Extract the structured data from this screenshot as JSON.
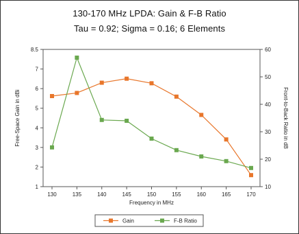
{
  "chart_data": {
    "type": "line",
    "title": "130-170 MHz LPDA: Gain & F-B Ratio",
    "subtitle": "Tau = 0.92; Sigma = 0.16; 6 Elements",
    "xlabel": "Frequency in MHz",
    "ylabel_left": "Free-Space Gain in dBi",
    "ylabel_right": "Front-to-Back Ratio in dB",
    "x": [
      130,
      135,
      140,
      145,
      150,
      155,
      160,
      165,
      170
    ],
    "ylim_left": [
      1,
      8.5
    ],
    "ylim_right": [
      10,
      60
    ],
    "yticks_left": [
      "1",
      "2",
      "3",
      "4",
      "5",
      "6",
      "7",
      "8.5"
    ],
    "yticks_right": [
      "10",
      "20",
      "30",
      "40",
      "50",
      "60"
    ],
    "series": [
      {
        "name": "Gain",
        "axis": "left",
        "color": "#e8762b",
        "values": [
          5.95,
          6.12,
          6.68,
          6.9,
          6.65,
          5.92,
          4.92,
          3.58,
          1.63
        ]
      },
      {
        "name": "F-B Ratio",
        "axis": "right",
        "color": "#6aa84f",
        "values": [
          24.3,
          57.0,
          34.3,
          34.0,
          27.5,
          23.3,
          21.0,
          19.3,
          16.8
        ]
      }
    ],
    "grid": false,
    "legend": "bottom"
  }
}
